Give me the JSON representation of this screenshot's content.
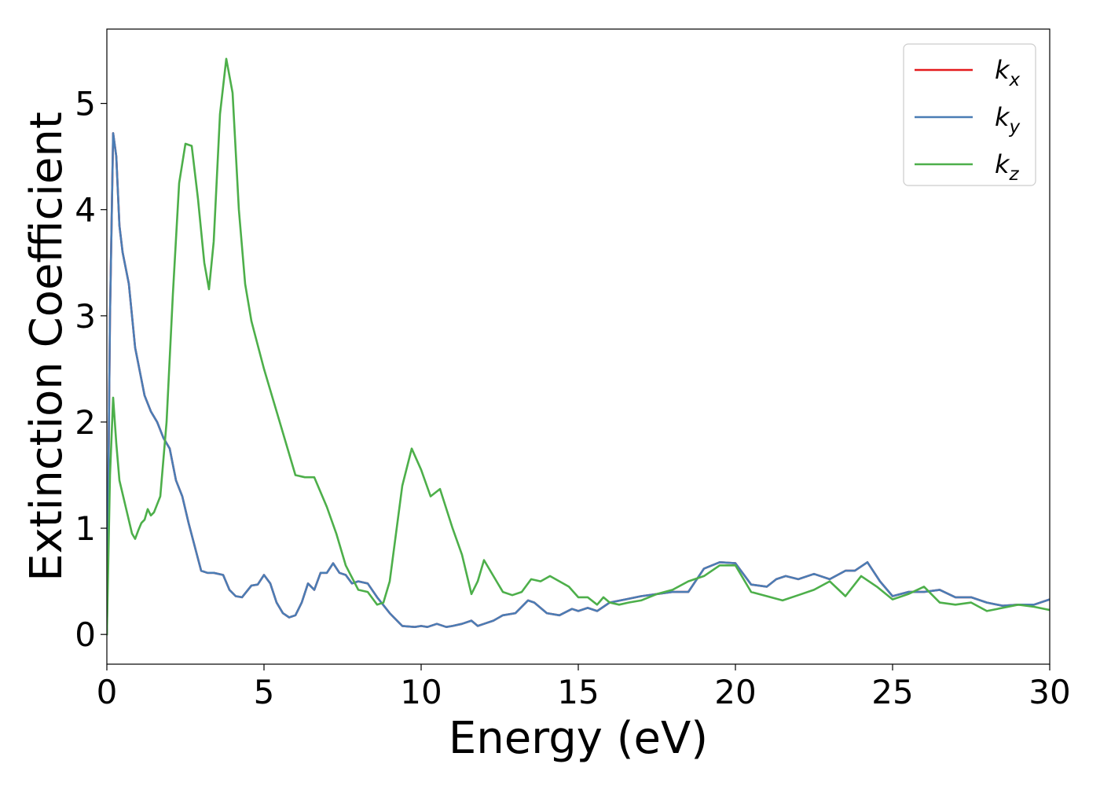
{
  "chart_data": {
    "type": "line",
    "title": "",
    "xlabel": "Energy (eV)",
    "ylabel": "Extinction Coefficient",
    "xlim": [
      0,
      30
    ],
    "ylim": [
      -0.28,
      5.7
    ],
    "xticks": [
      0,
      5,
      10,
      15,
      20,
      25,
      30
    ],
    "yticks": [
      0,
      1,
      2,
      3,
      4,
      5
    ],
    "grid": false,
    "legend_position": "top-right",
    "colors": {
      "kx": "#e41a1c",
      "ky": "#4a7db5",
      "kz": "#4daf4a"
    },
    "series": [
      {
        "name": "k_x",
        "key": "kx",
        "legend": {
          "base": "k",
          "sub": "x"
        },
        "x": [
          0,
          0.1,
          0.2,
          0.3,
          0.4,
          0.5,
          0.7,
          0.9,
          1.0,
          1.2,
          1.4,
          1.6,
          1.8,
          2.0,
          2.2,
          2.4,
          2.6,
          3.0,
          3.2,
          3.4,
          3.7,
          3.9,
          4.1,
          4.3,
          4.6,
          4.8,
          5.0,
          5.2,
          5.4,
          5.6,
          5.8,
          6.0,
          6.2,
          6.4,
          6.6,
          6.8,
          7.0,
          7.2,
          7.4,
          7.6,
          7.8,
          8.0,
          8.3,
          8.6,
          9.0,
          9.4,
          9.8,
          10.0,
          10.2,
          10.5,
          10.8,
          11.0,
          11.3,
          11.6,
          11.8,
          12.0,
          12.3,
          12.6,
          13.0,
          13.4,
          13.6,
          14.0,
          14.4,
          14.8,
          15.0,
          15.3,
          15.6,
          15.8,
          16.0,
          16.5,
          17.0,
          17.5,
          18.0,
          18.5,
          19.0,
          19.5,
          20.0,
          20.5,
          21.0,
          21.3,
          21.6,
          22.0,
          22.5,
          23.0,
          23.5,
          23.8,
          24.2,
          24.6,
          25.0,
          25.5,
          26.0,
          26.5,
          27.0,
          27.5,
          28.0,
          28.5,
          29.0,
          29.5,
          30.0
        ],
        "y": [
          0,
          3.0,
          4.72,
          4.5,
          3.85,
          3.6,
          3.3,
          2.7,
          2.55,
          2.25,
          2.1,
          2.0,
          1.85,
          1.75,
          1.45,
          1.3,
          1.05,
          0.6,
          0.58,
          0.58,
          0.56,
          0.42,
          0.36,
          0.35,
          0.46,
          0.47,
          0.56,
          0.48,
          0.3,
          0.2,
          0.16,
          0.18,
          0.3,
          0.48,
          0.42,
          0.58,
          0.58,
          0.67,
          0.58,
          0.56,
          0.48,
          0.5,
          0.48,
          0.35,
          0.2,
          0.08,
          0.07,
          0.08,
          0.07,
          0.1,
          0.07,
          0.08,
          0.1,
          0.13,
          0.08,
          0.1,
          0.13,
          0.18,
          0.2,
          0.32,
          0.3,
          0.2,
          0.18,
          0.24,
          0.22,
          0.25,
          0.22,
          0.26,
          0.3,
          0.33,
          0.36,
          0.38,
          0.4,
          0.4,
          0.62,
          0.68,
          0.67,
          0.47,
          0.45,
          0.52,
          0.55,
          0.52,
          0.57,
          0.52,
          0.6,
          0.6,
          0.68,
          0.5,
          0.36,
          0.4,
          0.4,
          0.42,
          0.35,
          0.35,
          0.3,
          0.27,
          0.28,
          0.28,
          0.33
        ]
      },
      {
        "name": "k_y",
        "key": "ky",
        "legend": {
          "base": "k",
          "sub": "y"
        },
        "x": [
          0,
          0.1,
          0.2,
          0.3,
          0.4,
          0.5,
          0.7,
          0.9,
          1.0,
          1.2,
          1.4,
          1.6,
          1.8,
          2.0,
          2.2,
          2.4,
          2.6,
          3.0,
          3.2,
          3.4,
          3.7,
          3.9,
          4.1,
          4.3,
          4.6,
          4.8,
          5.0,
          5.2,
          5.4,
          5.6,
          5.8,
          6.0,
          6.2,
          6.4,
          6.6,
          6.8,
          7.0,
          7.2,
          7.4,
          7.6,
          7.8,
          8.0,
          8.3,
          8.6,
          9.0,
          9.4,
          9.8,
          10.0,
          10.2,
          10.5,
          10.8,
          11.0,
          11.3,
          11.6,
          11.8,
          12.0,
          12.3,
          12.6,
          13.0,
          13.4,
          13.6,
          14.0,
          14.4,
          14.8,
          15.0,
          15.3,
          15.6,
          15.8,
          16.0,
          16.5,
          17.0,
          17.5,
          18.0,
          18.5,
          19.0,
          19.5,
          20.0,
          20.5,
          21.0,
          21.3,
          21.6,
          22.0,
          22.5,
          23.0,
          23.5,
          23.8,
          24.2,
          24.6,
          25.0,
          25.5,
          26.0,
          26.5,
          27.0,
          27.5,
          28.0,
          28.5,
          29.0,
          29.5,
          30.0
        ],
        "y": [
          0,
          3.0,
          4.72,
          4.5,
          3.85,
          3.6,
          3.3,
          2.7,
          2.55,
          2.25,
          2.1,
          2.0,
          1.85,
          1.75,
          1.45,
          1.3,
          1.05,
          0.6,
          0.58,
          0.58,
          0.56,
          0.42,
          0.36,
          0.35,
          0.46,
          0.47,
          0.56,
          0.48,
          0.3,
          0.2,
          0.16,
          0.18,
          0.3,
          0.48,
          0.42,
          0.58,
          0.58,
          0.67,
          0.58,
          0.56,
          0.48,
          0.5,
          0.48,
          0.35,
          0.2,
          0.08,
          0.07,
          0.08,
          0.07,
          0.1,
          0.07,
          0.08,
          0.1,
          0.13,
          0.08,
          0.1,
          0.13,
          0.18,
          0.2,
          0.32,
          0.3,
          0.2,
          0.18,
          0.24,
          0.22,
          0.25,
          0.22,
          0.26,
          0.3,
          0.33,
          0.36,
          0.38,
          0.4,
          0.4,
          0.62,
          0.68,
          0.67,
          0.47,
          0.45,
          0.52,
          0.55,
          0.52,
          0.57,
          0.52,
          0.6,
          0.6,
          0.68,
          0.5,
          0.36,
          0.4,
          0.4,
          0.42,
          0.35,
          0.35,
          0.3,
          0.27,
          0.28,
          0.28,
          0.33
        ]
      },
      {
        "name": "k_z",
        "key": "kz",
        "legend": {
          "base": "k",
          "sub": "z"
        },
        "x": [
          0,
          0.1,
          0.2,
          0.3,
          0.4,
          0.6,
          0.8,
          0.9,
          1.0,
          1.1,
          1.2,
          1.3,
          1.4,
          1.5,
          1.7,
          1.9,
          2.1,
          2.3,
          2.5,
          2.7,
          2.9,
          3.1,
          3.25,
          3.4,
          3.6,
          3.8,
          4.0,
          4.2,
          4.4,
          4.6,
          5.0,
          5.5,
          6.0,
          6.3,
          6.6,
          7.0,
          7.3,
          7.6,
          8.0,
          8.3,
          8.6,
          8.8,
          9.0,
          9.2,
          9.4,
          9.7,
          10.0,
          10.3,
          10.6,
          11.0,
          11.3,
          11.6,
          11.8,
          12.0,
          12.3,
          12.6,
          12.9,
          13.2,
          13.5,
          13.8,
          14.1,
          14.4,
          14.7,
          15.0,
          15.3,
          15.6,
          15.8,
          16.0,
          16.3,
          16.6,
          17.0,
          17.5,
          18.0,
          18.5,
          19.0,
          19.5,
          20.0,
          20.5,
          21.0,
          21.5,
          22.0,
          22.5,
          23.0,
          23.5,
          24.0,
          24.5,
          25.0,
          25.5,
          26.0,
          26.5,
          27.0,
          27.5,
          28.0,
          28.5,
          29.0,
          29.5,
          30.0
        ],
        "y": [
          0,
          1.5,
          2.23,
          1.8,
          1.45,
          1.2,
          0.95,
          0.9,
          0.98,
          1.05,
          1.08,
          1.18,
          1.12,
          1.15,
          1.3,
          2.0,
          3.2,
          4.25,
          4.62,
          4.6,
          4.1,
          3.5,
          3.25,
          3.7,
          4.9,
          5.42,
          5.1,
          4.0,
          3.3,
          2.95,
          2.5,
          2.0,
          1.5,
          1.48,
          1.48,
          1.2,
          0.95,
          0.65,
          0.42,
          0.4,
          0.28,
          0.3,
          0.5,
          0.95,
          1.4,
          1.75,
          1.55,
          1.3,
          1.37,
          1.0,
          0.75,
          0.38,
          0.5,
          0.7,
          0.55,
          0.4,
          0.37,
          0.4,
          0.52,
          0.5,
          0.55,
          0.5,
          0.45,
          0.35,
          0.35,
          0.28,
          0.35,
          0.3,
          0.28,
          0.3,
          0.32,
          0.38,
          0.42,
          0.5,
          0.55,
          0.65,
          0.65,
          0.4,
          0.36,
          0.32,
          0.37,
          0.42,
          0.5,
          0.36,
          0.55,
          0.45,
          0.33,
          0.38,
          0.45,
          0.3,
          0.28,
          0.3,
          0.22,
          0.25,
          0.28,
          0.26,
          0.23
        ]
      }
    ]
  }
}
